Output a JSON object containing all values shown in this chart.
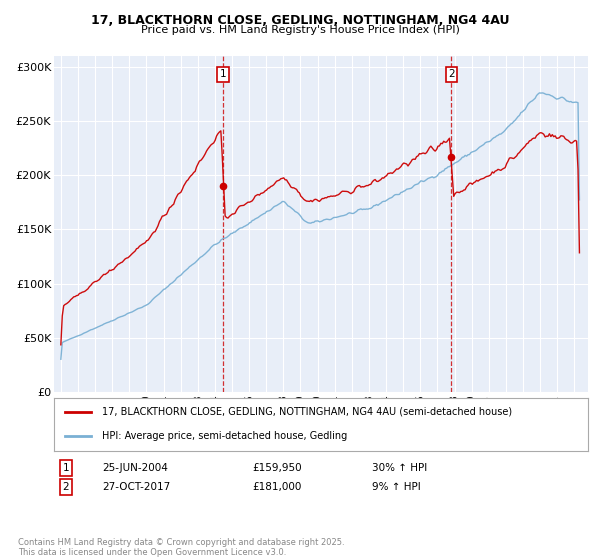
{
  "title_line1": "17, BLACKTHORN CLOSE, GEDLING, NOTTINGHAM, NG4 4AU",
  "title_line2": "Price paid vs. HM Land Registry's House Price Index (HPI)",
  "ylabel_ticks": [
    "£0",
    "£50K",
    "£100K",
    "£150K",
    "£200K",
    "£250K",
    "£300K"
  ],
  "ytick_values": [
    0,
    50000,
    100000,
    150000,
    200000,
    250000,
    300000
  ],
  "ylim": [
    0,
    310000
  ],
  "xlim_start": 1994.6,
  "xlim_end": 2025.8,
  "legend_line1": "17, BLACKTHORN CLOSE, GEDLING, NOTTINGHAM, NG4 4AU (semi-detached house)",
  "legend_line2": "HPI: Average price, semi-detached house, Gedling",
  "sale1_date": "25-JUN-2004",
  "sale1_price": "£159,950",
  "sale1_hpi": "30% ↑ HPI",
  "sale1_year": 2004.48,
  "sale1_value": 159950,
  "sale2_date": "27-OCT-2017",
  "sale2_price": "£181,000",
  "sale2_hpi": "9% ↑ HPI",
  "sale2_year": 2017.82,
  "sale2_value": 181000,
  "line_color_red": "#cc0000",
  "line_color_blue": "#7ab0d4",
  "background_color": "#e8eef8",
  "footer_text": "Contains HM Land Registry data © Crown copyright and database right 2025.\nThis data is licensed under the Open Government Licence v3.0."
}
